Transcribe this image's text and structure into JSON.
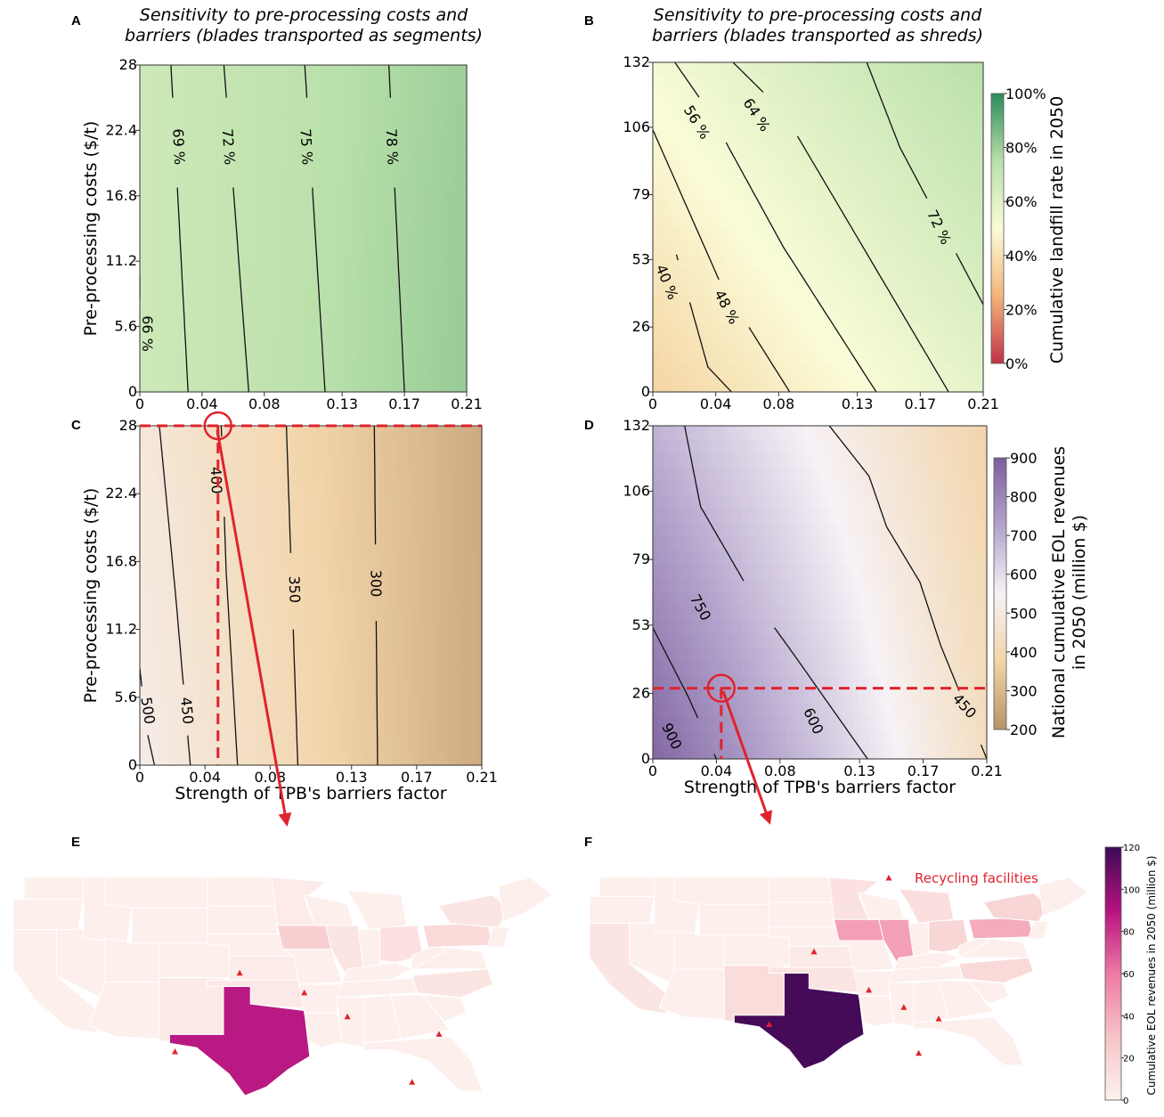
{
  "panel_letters": [
    "A",
    "B",
    "C",
    "D",
    "E",
    "F"
  ],
  "colors": {
    "landfill_scale": [
      "#c0324a",
      "#f2b57a",
      "#fafcd8",
      "#b9e0aa",
      "#2e8a5c"
    ],
    "revenue_scale": [
      "#b8926a",
      "#f2d4a8",
      "#f6f2f6",
      "#b3a3cc",
      "#7c5f9e"
    ],
    "state_scale": [
      "#fdf1ee",
      "#f7c4c6",
      "#ee7aa5",
      "#b5127f",
      "#3d0a56"
    ],
    "marker": "#e0232d",
    "contour": "#111111"
  },
  "chart_data": [
    {
      "id": "A",
      "type": "heatmap",
      "title": "Sensitivity to pre-processing costs and barriers (blades transported as segments)",
      "title_lines": [
        "Sensitivity to pre-processing costs and",
        "barriers (blades transported as segments)"
      ],
      "xlabel": "",
      "ylabel": "Pre-processing costs ($/t)",
      "xlim": [
        0,
        0.21
      ],
      "ylim": [
        0,
        28
      ],
      "x_ticks": [
        0,
        0.04,
        0.08,
        0.13,
        0.17,
        0.21
      ],
      "x_tick_labels": [
        "0",
        "0.04",
        "0.08",
        "0.13",
        "0.17",
        "0.21"
      ],
      "y_ticks": [
        0,
        5.6,
        11.2,
        16.8,
        22.4,
        28
      ],
      "y_tick_labels": [
        "0",
        "5.6",
        "11.2",
        "16.8",
        "22.4",
        "28"
      ],
      "colormap": "landfill",
      "value_range": [
        0,
        100
      ],
      "field": {
        "v00": 67,
        "v10": 81,
        "v01": 67,
        "v11": 80
      },
      "contours": [
        {
          "label": "66 %",
          "points": [
            [
              0.0,
              8.0
            ],
            [
              0.0,
              10.0
            ]
          ],
          "label_at": [
            0.005,
            5.0
          ],
          "gap": [
            3.5,
            7.5
          ]
        },
        {
          "label": "69 %",
          "points": [
            [
              0.031,
              0.0
            ],
            [
              0.02,
              28.0
            ]
          ],
          "label_at": [
            0.025,
            21.0
          ],
          "gap": [
            18.0,
            25.0
          ]
        },
        {
          "label": "72 %",
          "points": [
            [
              0.07,
              0.0
            ],
            [
              0.054,
              28.0
            ]
          ],
          "label_at": [
            0.057,
            21.0
          ],
          "gap": [
            18.0,
            25.0
          ]
        },
        {
          "label": "75 %",
          "points": [
            [
              0.119,
              0.0
            ],
            [
              0.106,
              28.0
            ]
          ],
          "label_at": [
            0.107,
            21.0
          ],
          "gap": [
            18.0,
            25.0
          ]
        },
        {
          "label": "78 %",
          "points": [
            [
              0.17,
              0.0
            ],
            [
              0.16,
              28.0
            ]
          ],
          "label_at": [
            0.162,
            21.0
          ],
          "gap": [
            18.0,
            25.0
          ]
        }
      ]
    },
    {
      "id": "B",
      "type": "heatmap",
      "title": "Sensitivity to pre-processing costs and barriers (blades transported as shreds)",
      "title_lines": [
        "Sensitivity to pre-processing costs and",
        "barriers (blades transported as shreds)"
      ],
      "xlabel": "",
      "ylabel": "",
      "xlim": [
        0,
        0.21
      ],
      "ylim": [
        0,
        132
      ],
      "x_ticks": [
        0,
        0.04,
        0.08,
        0.13,
        0.17,
        0.21
      ],
      "x_tick_labels": [
        "0",
        "0.04",
        "0.08",
        "0.13",
        "0.17",
        "0.21"
      ],
      "y_ticks": [
        0,
        26,
        53,
        79,
        106,
        132
      ],
      "y_tick_labels": [
        "0",
        "26",
        "53",
        "79",
        "106",
        "132"
      ],
      "colormap": "landfill",
      "value_range": [
        0,
        100
      ],
      "field": {
        "v00": 36,
        "v10": 58,
        "v01": 52,
        "v11": 75
      },
      "contours": [
        {
          "label": "40 %",
          "points": [
            [
              0.015,
              55.0
            ],
            [
              0.035,
              10.0
            ],
            [
              0.05,
              0.0
            ]
          ],
          "label_at": [
            0.009,
            44.0
          ],
          "gap": [
            36.0,
            52.0
          ]
        },
        {
          "label": "48 %",
          "points": [
            [
              0.0,
              105.0
            ],
            [
              0.042,
              45.0
            ],
            [
              0.087,
              0.0
            ]
          ],
          "label_at": [
            0.047,
            34.0
          ],
          "gap": [
            26.0,
            44.0
          ]
        },
        {
          "label": "56 %",
          "points": [
            [
              0.014,
              132.0
            ],
            [
              0.036,
              112.0
            ],
            [
              0.083,
              58.0
            ],
            [
              0.142,
              0.0
            ]
          ],
          "label_at": [
            0.028,
            108.0
          ],
          "gap": [
            100.0,
            118.0
          ]
        },
        {
          "label": "64 %",
          "points": [
            [
              0.051,
              132.0
            ],
            [
              0.083,
              112.0
            ],
            [
              0.143,
              48.0
            ],
            [
              0.188,
              0.0
            ]
          ],
          "label_at": [
            0.066,
            111.0
          ],
          "gap": [
            103.0,
            120.0
          ]
        },
        {
          "label": "72 %",
          "points": [
            [
              0.136,
              132.0
            ],
            [
              0.157,
              98.0
            ],
            [
              0.21,
              35.0
            ]
          ],
          "label_at": [
            0.182,
            66.0
          ],
          "gap": [
            56.0,
            77.0
          ]
        }
      ]
    },
    {
      "id": "C",
      "type": "heatmap",
      "title": "",
      "xlabel": "Strength of TPB's barriers factor",
      "ylabel": "Pre-processing costs ($/t)",
      "xlim": [
        0,
        0.21
      ],
      "ylim": [
        0,
        28
      ],
      "x_ticks": [
        0,
        0.04,
        0.08,
        0.13,
        0.17,
        0.21
      ],
      "x_tick_labels": [
        "0",
        "0.04",
        "0.08",
        "0.13",
        "0.17",
        "0.21"
      ],
      "y_ticks": [
        0,
        5.6,
        11.2,
        16.8,
        22.4,
        28
      ],
      "y_tick_labels": [
        "0",
        "5.6",
        "11.2",
        "16.8",
        "22.4",
        "28"
      ],
      "colormap": "revenue",
      "value_range": [
        200,
        900
      ],
      "field": {
        "v00": 520,
        "v10": 265,
        "v01": 490,
        "v11": 265
      },
      "contours": [
        {
          "label": "500",
          "points": [
            [
              0.0,
              8.0
            ],
            [
              0.004,
              3.0
            ],
            [
              0.009,
              0.0
            ]
          ],
          "label_at": [
            0.005,
            4.5
          ],
          "gap": [
            2.5,
            6.5
          ]
        },
        {
          "label": "450",
          "points": [
            [
              0.012,
              28.0
            ],
            [
              0.022,
              14.0
            ],
            [
              0.031,
              0.0
            ]
          ],
          "label_at": [
            0.029,
            4.5
          ],
          "gap": [
            2.5,
            6.5
          ]
        },
        {
          "label": "400",
          "points": [
            [
              0.05,
              28.0
            ],
            [
              0.053,
              16.0
            ],
            [
              0.06,
              0.0
            ]
          ],
          "label_at": [
            0.047,
            23.5
          ],
          "gap": [
            20.5,
            27.0
          ]
        },
        {
          "label": "350",
          "points": [
            [
              0.09,
              28.0
            ],
            [
              0.097,
              0.0
            ]
          ],
          "label_at": [
            0.095,
            14.5
          ],
          "gap": [
            11.5,
            17.5
          ]
        },
        {
          "label": "300",
          "points": [
            [
              0.144,
              28.0
            ],
            [
              0.146,
              0.0
            ]
          ],
          "label_at": [
            0.145,
            15.0
          ],
          "gap": [
            12.0,
            18.0
          ]
        }
      ],
      "marker": {
        "x": 0.048,
        "y": 28
      },
      "dashed_h": 28,
      "dashed_v": 0.048
    },
    {
      "id": "D",
      "type": "heatmap",
      "title": "",
      "xlabel": "Strength of TPB's barriers factor",
      "ylabel": "",
      "xlim": [
        0,
        0.21
      ],
      "ylim": [
        0,
        132
      ],
      "x_ticks": [
        0,
        0.04,
        0.08,
        0.13,
        0.17,
        0.21
      ],
      "x_tick_labels": [
        "0",
        "0.04",
        "0.08",
        "0.13",
        "0.17",
        "0.21"
      ],
      "y_ticks": [
        0,
        26,
        53,
        79,
        106,
        132
      ],
      "y_tick_labels": [
        "0",
        "26",
        "53",
        "79",
        "106",
        "132"
      ],
      "colormap": "revenue",
      "value_range": [
        200,
        900
      ],
      "field": {
        "v00": 880,
        "v10": 430,
        "v01": 690,
        "v11": 380
      },
      "contours": [
        {
          "label": "900",
          "points": [
            [
              0.0,
              52.0
            ],
            [
              0.022,
              25.0
            ],
            [
              0.04,
              0.0
            ]
          ],
          "label_at": [
            0.012,
            9.0
          ],
          "gap": [
            2.0,
            16.0
          ]
        },
        {
          "label": "750",
          "points": [
            [
              0.02,
              132.0
            ],
            [
              0.03,
              100.0
            ],
            [
              0.065,
              62.0
            ],
            [
              0.088,
              42.0
            ],
            [
              0.135,
              0.0
            ]
          ],
          "label_at": [
            0.03,
            60.0
          ],
          "gap": [
            52.0,
            70.0
          ]
        },
        {
          "label": "600",
          "points": [
            [
              0.111,
              132.0
            ],
            [
              0.136,
              112.0
            ],
            [
              0.147,
              92.0
            ],
            [
              0.168,
              70.0
            ],
            [
              0.181,
              45.0
            ],
            [
              0.21,
              0.0
            ]
          ],
          "label_at": [
            0.101,
            15.0
          ],
          "gap": [
            6.0,
            26.0
          ]
        },
        {
          "label": "450",
          "points": [],
          "label_at": [
            0.196,
            21.0
          ],
          "gap": [
            0.0,
            0.0
          ]
        }
      ],
      "marker": {
        "x": 0.043,
        "y": 28
      },
      "dashed_h": 28,
      "dashed_v": 0.043
    }
  ],
  "colorbars": [
    {
      "id": "landfill",
      "label": "Cumulative landfill rate in 2050",
      "ticks": [
        "0%",
        "20%",
        "40%",
        "60%",
        "80%",
        "100%"
      ],
      "values": [
        0,
        20,
        40,
        60,
        80,
        100
      ]
    },
    {
      "id": "revenue",
      "label_lines": [
        "National cumulative EOL revenues",
        "in 2050 (million $)"
      ],
      "label": "National cumulative EOL revenues in 2050 (million $)",
      "ticks": [
        "200",
        "300",
        "400",
        "500",
        "600",
        "700",
        "800",
        "900"
      ],
      "values": [
        200,
        300,
        400,
        500,
        600,
        700,
        800,
        900
      ]
    },
    {
      "id": "state",
      "label": "Cumulative EOL revenues in 2050 (million $)",
      "ticks": [
        "0",
        "20",
        "40",
        "60",
        "80",
        "100",
        "120"
      ],
      "values": [
        0,
        20,
        40,
        60,
        80,
        100,
        120
      ]
    }
  ],
  "maps": {
    "legend_label": "Recycling facilities",
    "E": {
      "texas": 88,
      "iowa": 22,
      "pennsylvania": 16,
      "illinois": 8,
      "ohio": 10,
      "new_york": 8,
      "north_carolina": 8,
      "new_mexico": 5,
      "minnesota": 4,
      "oklahoma": 6,
      "kansas": 3
    },
    "F": {
      "texas": 118,
      "iowa": 45,
      "illinois": 45,
      "pennsylvania": 40,
      "ohio": 18,
      "new_york": 18,
      "north_carolina": 16,
      "new_mexico": 14,
      "oklahoma": 9,
      "michigan": 12,
      "minnesota": 10,
      "california": 8,
      "kansas": 5
    },
    "E_facilities": [
      [
        0.42,
        0.44
      ],
      [
        0.54,
        0.53
      ],
      [
        0.62,
        0.64
      ],
      [
        0.79,
        0.72
      ],
      [
        0.3,
        0.8
      ],
      [
        0.74,
        0.94
      ]
    ],
    "F_facilities": [
      [
        0.45,
        0.39
      ],
      [
        0.56,
        0.59
      ],
      [
        0.63,
        0.68
      ],
      [
        0.7,
        0.74
      ],
      [
        0.36,
        0.77
      ],
      [
        0.66,
        0.92
      ]
    ]
  }
}
